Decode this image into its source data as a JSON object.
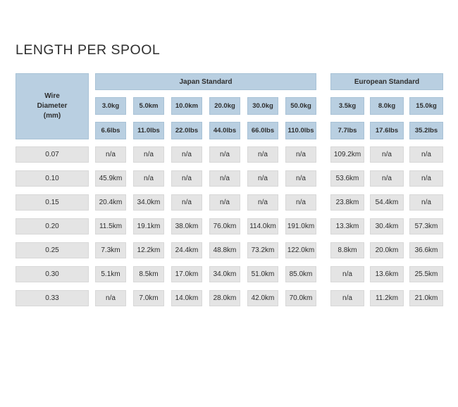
{
  "page": {
    "title": "LENGTH PER SPOOL",
    "background": "#ffffff"
  },
  "colors": {
    "header_blue": "#b9cfe1",
    "cell_gray": "#e4e4e4",
    "text": "#2e2e2e"
  },
  "chart_data": {
    "type": "table",
    "title": "LENGTH PER SPOOL",
    "corner_header": "Wire Diameter (mm)",
    "groups": [
      {
        "label": "Japan Standard",
        "columns": 6
      },
      {
        "label": "European Standard",
        "columns": 3
      }
    ],
    "kg_headers": [
      "3.0kg",
      "5.0km",
      "10.0km",
      "20.0kg",
      "30.0kg",
      "50.0kg",
      "3.5kg",
      "8.0kg",
      "15.0kg"
    ],
    "lbs_headers": [
      "6.6lbs",
      "11.0lbs",
      "22.0lbs",
      "44.0lbs",
      "66.0lbs",
      "110.0lbs",
      "7.7lbs",
      "17.6lbs",
      "35.2lbs"
    ],
    "rows": [
      {
        "diameter": "0.07",
        "values": [
          "n/a",
          "n/a",
          "n/a",
          "n/a",
          "n/a",
          "n/a",
          "109.2km",
          "n/a",
          "n/a"
        ]
      },
      {
        "diameter": "0.10",
        "values": [
          "45.9km",
          "n/a",
          "n/a",
          "n/a",
          "n/a",
          "n/a",
          "53.6km",
          "n/a",
          "n/a"
        ]
      },
      {
        "diameter": "0.15",
        "values": [
          "20.4km",
          "34.0km",
          "n/a",
          "n/a",
          "n/a",
          "n/a",
          "23.8km",
          "54.4km",
          "n/a"
        ]
      },
      {
        "diameter": "0.20",
        "values": [
          "11.5km",
          "19.1km",
          "38.0km",
          "76.0km",
          "114.0km",
          "191.0km",
          "13.3km",
          "30.4km",
          "57.3km"
        ]
      },
      {
        "diameter": "0.25",
        "values": [
          "7.3km",
          "12.2km",
          "24.4km",
          "48.8km",
          "73.2km",
          "122.0km",
          "8.8km",
          "20.0km",
          "36.6km"
        ]
      },
      {
        "diameter": "0.30",
        "values": [
          "5.1km",
          "8.5km",
          "17.0km",
          "34.0km",
          "51.0km",
          "85.0km",
          "n/a",
          "13.6km",
          "25.5km"
        ]
      },
      {
        "diameter": "0.33",
        "values": [
          "n/a",
          "7.0km",
          "14.0km",
          "28.0km",
          "42.0km",
          "70.0km",
          "n/a",
          "11.2km",
          "21.0km"
        ]
      }
    ]
  }
}
